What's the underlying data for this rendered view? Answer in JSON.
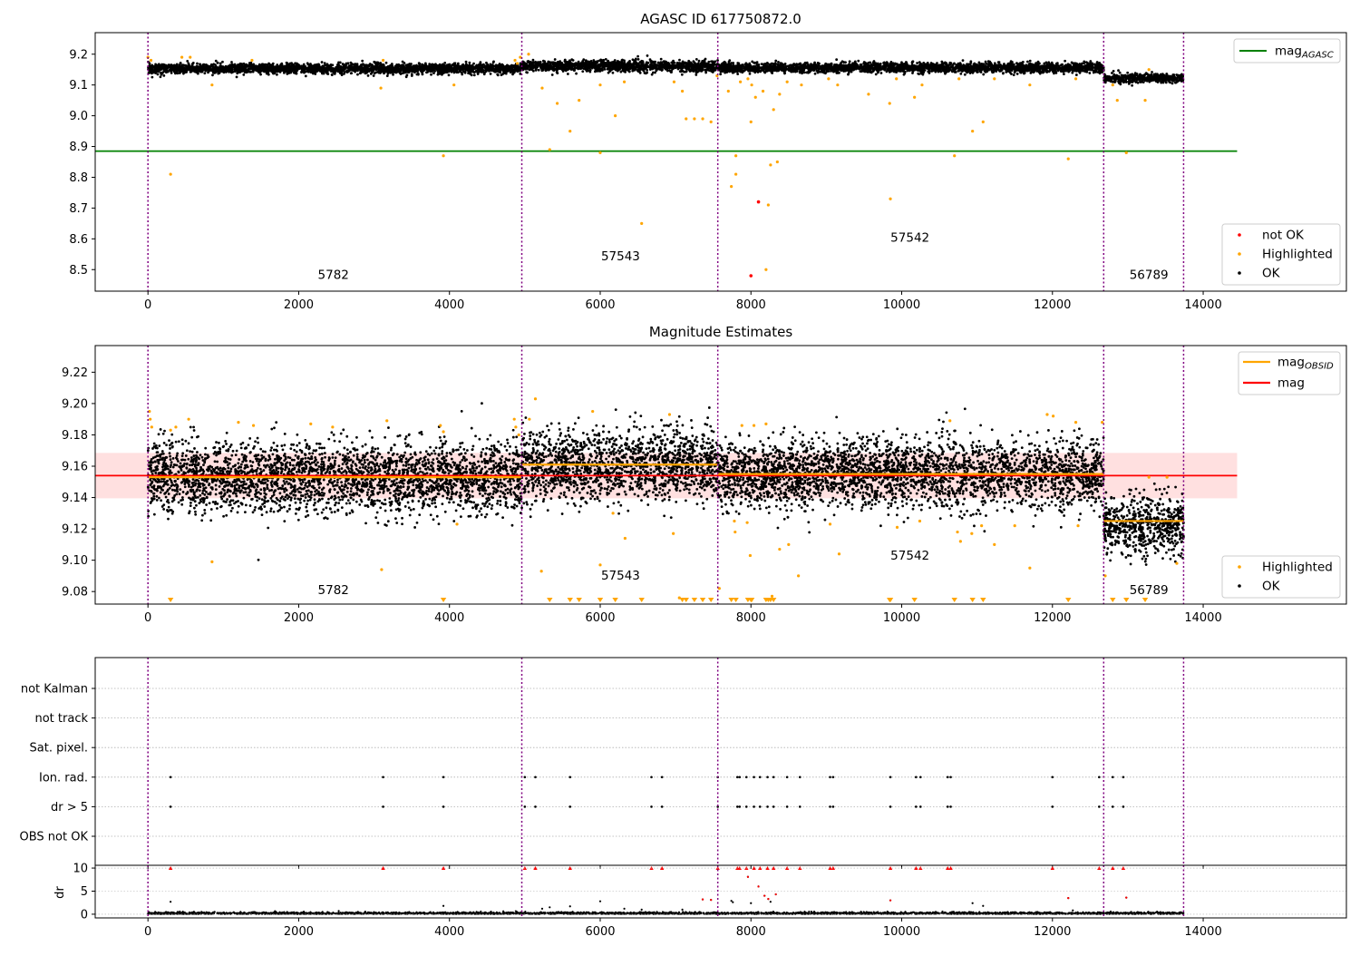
{
  "chart_data": [
    {
      "type": "scatter",
      "title": "AGASC ID 617750872.0",
      "xlim": [
        -700,
        15900
      ],
      "ylim": [
        8.43,
        9.27
      ],
      "x_ticks": [
        0,
        2000,
        4000,
        6000,
        8000,
        10000,
        12000,
        14000
      ],
      "y_ticks": [
        8.5,
        8.6,
        8.7,
        8.8,
        8.9,
        9.0,
        9.1,
        9.2
      ],
      "obsid_boundaries": [
        0,
        4960,
        7560,
        12680,
        13740
      ],
      "obsid_labels": [
        {
          "text": "5782",
          "x": 2460,
          "y": 8.47
        },
        {
          "text": "57543",
          "x": 6270,
          "y": 8.53
        },
        {
          "text": "57542",
          "x": 10110,
          "y": 8.59
        },
        {
          "text": "56789",
          "x": 13280,
          "y": 8.47
        }
      ],
      "mag_agasc": 8.885,
      "mag_line_xrange": [
        -700,
        14450
      ],
      "legend_lines": [
        {
          "name": "mag",
          "sub": "AGASC",
          "color": "#008000"
        }
      ],
      "legend_points": [
        {
          "name": "not OK",
          "color": "#ff0000"
        },
        {
          "name": "Highlighted",
          "color": "#ffa500"
        },
        {
          "name": "OK",
          "color": "#000000"
        }
      ],
      "ok_segments": [
        {
          "x0": 0,
          "x1": 4960,
          "mean": 9.153,
          "sigma": 0.008
        },
        {
          "x0": 4960,
          "x1": 7560,
          "mean": 9.161,
          "sigma": 0.009
        },
        {
          "x0": 7560,
          "x1": 12680,
          "mean": 9.156,
          "sigma": 0.008
        },
        {
          "x0": 12680,
          "x1": 13740,
          "mean": 9.122,
          "sigma": 0.007
        }
      ],
      "highlighted": [
        [
          0,
          9.19
        ],
        [
          40,
          9.18
        ],
        [
          300,
          8.81
        ],
        [
          450,
          9.19
        ],
        [
          560,
          9.19
        ],
        [
          850,
          9.1
        ],
        [
          1380,
          9.18
        ],
        [
          3090,
          9.09
        ],
        [
          3120,
          9.18
        ],
        [
          3920,
          8.87
        ],
        [
          4060,
          9.1
        ],
        [
          4870,
          9.18
        ],
        [
          4900,
          9.17
        ],
        [
          4940,
          9.19
        ],
        [
          5050,
          9.2
        ],
        [
          5230,
          9.09
        ],
        [
          5330,
          8.89
        ],
        [
          5430,
          9.04
        ],
        [
          5600,
          8.95
        ],
        [
          5720,
          9.05
        ],
        [
          6000,
          9.1
        ],
        [
          6000,
          8.88
        ],
        [
          6200,
          9.0
        ],
        [
          6320,
          9.11
        ],
        [
          6550,
          8.65
        ],
        [
          6980,
          9.11
        ],
        [
          7090,
          9.08
        ],
        [
          7140,
          8.99
        ],
        [
          7250,
          8.99
        ],
        [
          7360,
          8.99
        ],
        [
          7470,
          8.98
        ],
        [
          7550,
          9.13
        ],
        [
          7700,
          9.08
        ],
        [
          7740,
          8.77
        ],
        [
          7800,
          8.81
        ],
        [
          7800,
          8.87
        ],
        [
          7860,
          9.11
        ],
        [
          7960,
          9.12
        ],
        [
          8000,
          8.98
        ],
        [
          8010,
          9.1
        ],
        [
          8060,
          9.06
        ],
        [
          8160,
          9.08
        ],
        [
          8200,
          8.5
        ],
        [
          8230,
          8.71
        ],
        [
          8260,
          8.84
        ],
        [
          8300,
          9.02
        ],
        [
          8350,
          8.85
        ],
        [
          8380,
          9.07
        ],
        [
          8480,
          9.11
        ],
        [
          8670,
          9.1
        ],
        [
          9030,
          9.12
        ],
        [
          9150,
          9.1
        ],
        [
          9560,
          9.07
        ],
        [
          9840,
          9.04
        ],
        [
          9850,
          8.73
        ],
        [
          9930,
          9.12
        ],
        [
          10170,
          9.06
        ],
        [
          10270,
          9.1
        ],
        [
          10700,
          8.87
        ],
        [
          10760,
          9.12
        ],
        [
          10940,
          8.95
        ],
        [
          11080,
          8.98
        ],
        [
          11230,
          9.12
        ],
        [
          11700,
          9.1
        ],
        [
          12210,
          8.86
        ],
        [
          12310,
          9.12
        ],
        [
          12800,
          9.1
        ],
        [
          12860,
          9.05
        ],
        [
          12980,
          8.88
        ],
        [
          13230,
          9.05
        ],
        [
          13280,
          9.15
        ]
      ],
      "not_ok": [
        [
          8000,
          8.48
        ],
        [
          8100,
          8.72
        ]
      ]
    },
    {
      "type": "scatter",
      "title": "Magnitude Estimates",
      "xlim": [
        -700,
        15900
      ],
      "ylim": [
        9.072,
        9.237
      ],
      "x_ticks": [
        0,
        2000,
        4000,
        6000,
        8000,
        10000,
        12000,
        14000
      ],
      "y_ticks": [
        9.08,
        9.1,
        9.12,
        9.14,
        9.16,
        9.18,
        9.2,
        9.22
      ],
      "obsid_boundaries": [
        0,
        4960,
        7560,
        12680,
        13740
      ],
      "obsid_labels": [
        {
          "text": "5782",
          "x": 2460,
          "y": 9.0785
        },
        {
          "text": "57543",
          "x": 6270,
          "y": 9.0875
        },
        {
          "text": "57542",
          "x": 10110,
          "y": 9.1005
        },
        {
          "text": "56789",
          "x": 13280,
          "y": 9.0785
        }
      ],
      "mag": 9.154,
      "mag_band": [
        9.1395,
        9.1685
      ],
      "mag_xrange": [
        -700,
        14450
      ],
      "mag_obsid": [
        {
          "x0": 0,
          "x1": 4960,
          "value": 9.153
        },
        {
          "x0": 4960,
          "x1": 7560,
          "value": 9.161
        },
        {
          "x0": 7560,
          "x1": 12680,
          "value": 9.155
        },
        {
          "x0": 12680,
          "x1": 13740,
          "value": 9.125
        }
      ],
      "legend_lines": [
        {
          "name": "mag",
          "sub": "OBSID",
          "color": "#ffa500"
        },
        {
          "name": "mag",
          "sub": "",
          "color": "#ff0000"
        }
      ],
      "legend_points": [
        {
          "name": "Highlighted",
          "color": "#ffa500"
        },
        {
          "name": "OK",
          "color": "#000000"
        }
      ],
      "ok_segments": [
        {
          "x0": 0,
          "x1": 4960,
          "mean": 9.153,
          "sigma": 0.011
        },
        {
          "x0": 4960,
          "x1": 7560,
          "mean": 9.161,
          "sigma": 0.011
        },
        {
          "x0": 7560,
          "x1": 12680,
          "mean": 9.155,
          "sigma": 0.011
        },
        {
          "x0": 12680,
          "x1": 13740,
          "mean": 9.122,
          "sigma": 0.009
        }
      ],
      "highlighted": [
        [
          20,
          9.195
        ],
        [
          30,
          9.19
        ],
        [
          50,
          9.185
        ],
        [
          300,
          9.183
        ],
        [
          370,
          9.185
        ],
        [
          540,
          9.19
        ],
        [
          850,
          9.099
        ],
        [
          1200,
          9.188
        ],
        [
          1400,
          9.186
        ],
        [
          2160,
          9.187
        ],
        [
          2450,
          9.185
        ],
        [
          3100,
          9.094
        ],
        [
          3170,
          9.189
        ],
        [
          3880,
          9.186
        ],
        [
          3920,
          9.182
        ],
        [
          4100,
          9.123
        ],
        [
          4860,
          9.19
        ],
        [
          4880,
          9.185
        ],
        [
          4920,
          9.18
        ],
        [
          5060,
          9.19
        ],
        [
          5140,
          9.203
        ],
        [
          5220,
          9.093
        ],
        [
          5900,
          9.195
        ],
        [
          6000,
          9.097
        ],
        [
          6170,
          9.13
        ],
        [
          6330,
          9.114
        ],
        [
          6920,
          9.193
        ],
        [
          6970,
          9.117
        ],
        [
          7050,
          9.076
        ],
        [
          7580,
          9.082
        ],
        [
          7780,
          9.125
        ],
        [
          7790,
          9.118
        ],
        [
          7880,
          9.186
        ],
        [
          7950,
          9.124
        ],
        [
          7990,
          9.103
        ],
        [
          8040,
          9.186
        ],
        [
          8200,
          9.187
        ],
        [
          8280,
          9.077
        ],
        [
          8380,
          9.107
        ],
        [
          8500,
          9.11
        ],
        [
          8630,
          9.09
        ],
        [
          9050,
          9.123
        ],
        [
          9170,
          9.104
        ],
        [
          9850,
          9.075
        ],
        [
          9940,
          9.121
        ],
        [
          10240,
          9.125
        ],
        [
          10640,
          9.189
        ],
        [
          10740,
          9.118
        ],
        [
          10780,
          9.112
        ],
        [
          10930,
          9.117
        ],
        [
          11060,
          9.122
        ],
        [
          11230,
          9.11
        ],
        [
          11500,
          9.122
        ],
        [
          11700,
          9.095
        ],
        [
          11930,
          9.193
        ],
        [
          12010,
          9.192
        ],
        [
          12310,
          9.188
        ],
        [
          12340,
          9.122
        ],
        [
          12660,
          9.188
        ],
        [
          12700,
          9.09
        ],
        [
          13280,
          9.153
        ],
        [
          13520,
          9.153
        ],
        [
          13650,
          9.098
        ]
      ],
      "below_limit_x": [
        300,
        3920,
        5330,
        5600,
        5720,
        6000,
        6200,
        6550,
        7090,
        7140,
        7250,
        7360,
        7470,
        7740,
        7800,
        7960,
        8000,
        8010,
        8200,
        8230,
        8260,
        8300,
        9850,
        9840,
        10170,
        10700,
        10940,
        11080,
        12210,
        12800,
        12980,
        13230
      ]
    },
    {
      "type": "scatter",
      "xlim": [
        -700,
        15900
      ],
      "x_ticks": [
        0,
        2000,
        4000,
        6000,
        8000,
        10000,
        12000,
        14000
      ],
      "obsid_boundaries": [
        0,
        4960,
        7560,
        12680,
        13740
      ],
      "flag_labels": [
        "not Kalman",
        "not track",
        "Sat. pixel.",
        "Ion. rad.",
        "dr > 5",
        "OBS not OK"
      ],
      "flag_events_x": [
        300,
        3120,
        3920,
        5000,
        5140,
        5600,
        6680,
        6820,
        7560,
        7820,
        7850,
        7940,
        8040,
        8120,
        8220,
        8300,
        8480,
        8650,
        9050,
        9090,
        9850,
        10190,
        10250,
        10610,
        10650,
        12000,
        12620,
        12800,
        12940
      ],
      "dr_ylabel": "dr",
      "dr_ylim": [
        -0.8,
        10.6
      ],
      "dr_ticks": [
        0,
        5,
        10
      ],
      "dr_scatter": [
        [
          300,
          2.7
        ],
        [
          3920,
          1.8
        ],
        [
          5230,
          1.2
        ],
        [
          5330,
          1.5
        ],
        [
          5600,
          1.7
        ],
        [
          6000,
          2.8
        ],
        [
          6320,
          1.2
        ],
        [
          6550,
          1.0
        ],
        [
          7090,
          1.0
        ],
        [
          7360,
          3.2
        ],
        [
          7470,
          3.1
        ],
        [
          7740,
          2.9
        ],
        [
          7760,
          2.6
        ],
        [
          7960,
          8.1
        ],
        [
          8100,
          6.0
        ],
        [
          8180,
          4.0
        ],
        [
          8230,
          3.3
        ],
        [
          8260,
          2.7
        ],
        [
          8330,
          4.3
        ],
        [
          8000,
          2.4
        ],
        [
          9850,
          3.0
        ],
        [
          10940,
          2.4
        ],
        [
          11080,
          1.8
        ],
        [
          12210,
          3.5
        ],
        [
          12980,
          3.6
        ]
      ]
    }
  ]
}
